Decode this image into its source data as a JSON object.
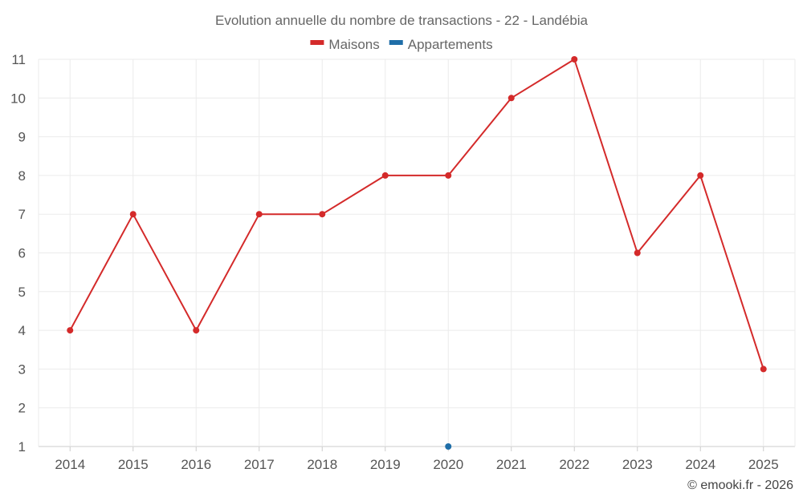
{
  "chart_data": {
    "type": "line",
    "title": "Evolution annuelle du nombre de transactions - 22 - Landébia",
    "categories": [
      "2014",
      "2015",
      "2016",
      "2017",
      "2018",
      "2019",
      "2020",
      "2021",
      "2022",
      "2023",
      "2024",
      "2025"
    ],
    "series": [
      {
        "name": "Maisons",
        "color": "#d42a2a",
        "values": [
          4,
          7,
          4,
          7,
          7,
          8,
          8,
          10,
          11,
          6,
          8,
          3
        ]
      },
      {
        "name": "Appartements",
        "color": "#1f6ea8",
        "values": [
          null,
          null,
          null,
          null,
          null,
          null,
          1,
          null,
          null,
          null,
          null,
          null
        ]
      }
    ],
    "ylim": [
      1,
      11
    ],
    "yticks": [
      1,
      2,
      3,
      4,
      5,
      6,
      7,
      8,
      9,
      10,
      11
    ],
    "xlabel": "",
    "ylabel": "",
    "grid": true,
    "legend": "top-center"
  },
  "credit": "© emooki.fr - 2026"
}
